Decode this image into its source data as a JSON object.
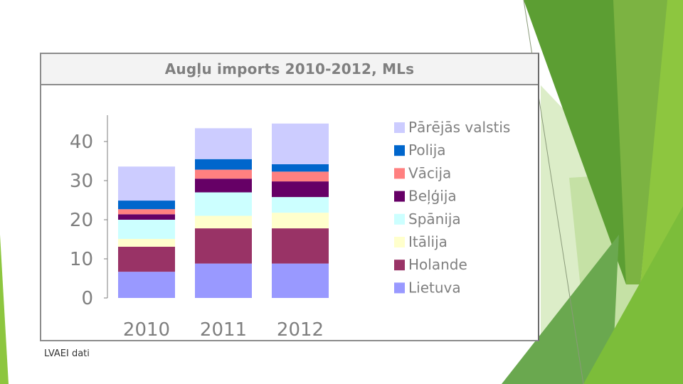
{
  "footer": {
    "source": "LVAEI dati"
  },
  "chart_data": {
    "type": "bar",
    "stacked": true,
    "title": "Augļu imports 2010-2012, MLs",
    "xlabel": "",
    "ylabel": "",
    "categories": [
      "2010",
      "2011",
      "2012"
    ],
    "ylim": [
      0,
      45
    ],
    "yticks": [
      0,
      10,
      20,
      30,
      40
    ],
    "grid": false,
    "legend_position": "right",
    "legend_order": "top-to-bottom reverses stack order",
    "series": [
      {
        "name": "Lietuva",
        "color": "#9999ff",
        "values": [
          6.7,
          8.8,
          8.8
        ]
      },
      {
        "name": "Holande",
        "color": "#993366",
        "values": [
          6.4,
          9.0,
          9.0
        ]
      },
      {
        "name": "Itālija",
        "color": "#ffffcc",
        "values": [
          2.0,
          3.2,
          4.0
        ]
      },
      {
        "name": "Spānija",
        "color": "#ccffff",
        "values": [
          4.9,
          6.0,
          4.0
        ]
      },
      {
        "name": "Beļģija",
        "color": "#660066",
        "values": [
          1.4,
          3.5,
          4.0
        ]
      },
      {
        "name": "Vācija",
        "color": "#ff8080",
        "values": [
          1.3,
          2.3,
          2.5
        ]
      },
      {
        "name": "Polija",
        "color": "#0066cc",
        "values": [
          2.2,
          2.7,
          1.9
        ]
      },
      {
        "name": "Pārējās valstis",
        "color": "#ccccff",
        "values": [
          8.7,
          7.9,
          10.4
        ]
      }
    ]
  },
  "theme": {
    "axis_color": "#7f7f7f",
    "tick_text_color": "#7f7f7f",
    "legend_text_color": "#7f7f7f",
    "accent_greens": [
      "#8dc63f",
      "#5c9e33",
      "#4b8a2a",
      "#a9d36f",
      "#d6ebb5",
      "#c9e29a"
    ]
  }
}
